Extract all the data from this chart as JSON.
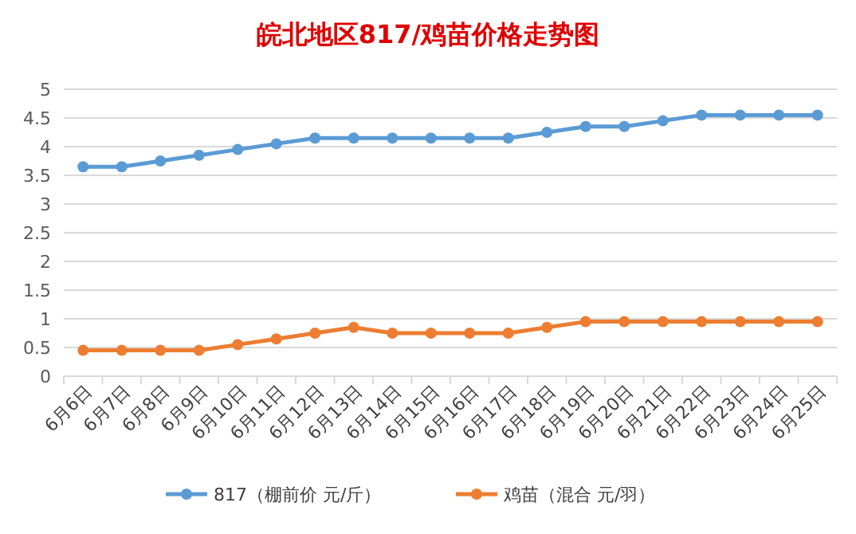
{
  "chart_data": {
    "type": "line",
    "title": "皖北地区817/鸡苗价格走势图",
    "categories": [
      "6月6日",
      "6月7日",
      "6月8日",
      "6月9日",
      "6月10日",
      "6月11日",
      "6月12日",
      "6月13日",
      "6月14日",
      "6月15日",
      "6月16日",
      "6月17日",
      "6月18日",
      "6月19日",
      "6月20日",
      "6月21日",
      "6月22日",
      "6月23日",
      "6月24日",
      "6月25日"
    ],
    "series": [
      {
        "name": "817（棚前价 元/斤）",
        "color": "#5b9bd5",
        "values": [
          3.65,
          3.65,
          3.75,
          3.85,
          3.95,
          4.05,
          4.15,
          4.15,
          4.15,
          4.15,
          4.15,
          4.15,
          4.25,
          4.35,
          4.35,
          4.45,
          4.55,
          4.55,
          4.55,
          4.55
        ]
      },
      {
        "name": "鸡苗（混合 元/羽）",
        "color": "#ed7d31",
        "values": [
          0.45,
          0.45,
          0.45,
          0.45,
          0.55,
          0.65,
          0.75,
          0.85,
          0.75,
          0.75,
          0.75,
          0.75,
          0.85,
          0.95,
          0.95,
          0.95,
          0.95,
          0.95,
          0.95,
          0.95
        ]
      }
    ],
    "ylim": [
      0,
      5
    ],
    "yticks": [
      0,
      0.5,
      1,
      1.5,
      2,
      2.5,
      3,
      3.5,
      4,
      4.5,
      5
    ],
    "grid": "y",
    "legend": "bottom",
    "marker": "circle",
    "line_style": "solid"
  }
}
